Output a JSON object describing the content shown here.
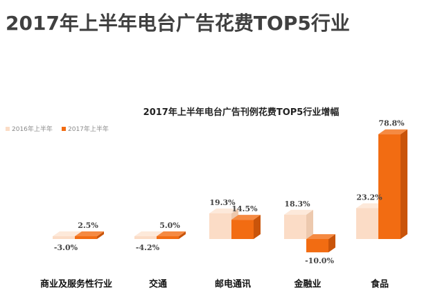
{
  "page_title": "2017年上半年电台广告花费TOP5行业",
  "chart_data": {
    "type": "bar",
    "title": "2017年上半年电台广告刊例花费TOP5行业增幅",
    "categories": [
      "商业及服务性行业",
      "交通",
      "邮电通讯",
      "金融业",
      "食品"
    ],
    "series": [
      {
        "name": "2016年上半年",
        "values": [
          -3.0,
          -4.2,
          19.3,
          18.3,
          23.2
        ],
        "labels": [
          "-3.0%",
          "-4.2%",
          "19.3%",
          "18.3%",
          "23.2%"
        ],
        "color": "#fbdcc6"
      },
      {
        "name": "2017年上半年",
        "values": [
          2.5,
          5.0,
          14.5,
          -10.0,
          78.8
        ],
        "labels": [
          "2.5%",
          "5.0%",
          "14.5%",
          "-10.0%",
          "78.8%"
        ],
        "color": "#f26c12"
      }
    ],
    "legend_position": "top-left",
    "grid": false,
    "xlabel": "",
    "ylabel": "",
    "unit": "%"
  }
}
